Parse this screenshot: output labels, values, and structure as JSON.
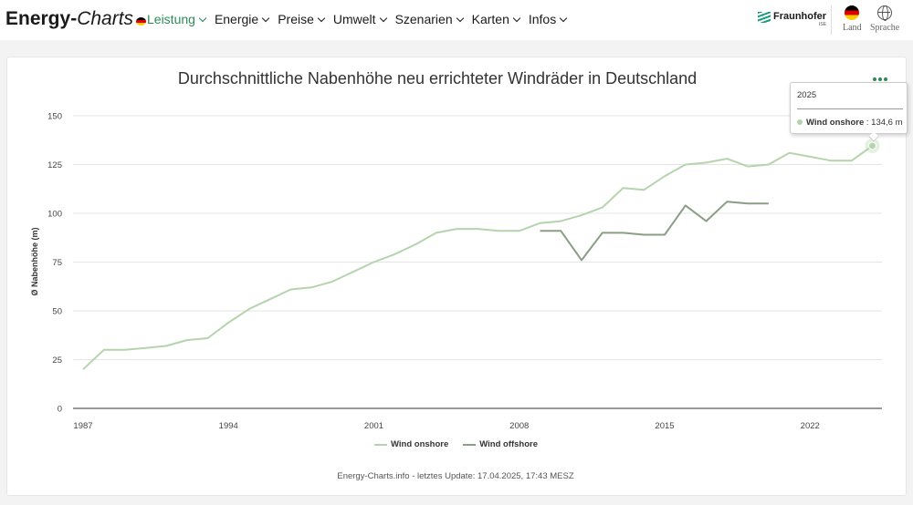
{
  "header": {
    "logo_main": "Energy-",
    "logo_italic": "Charts",
    "nav": [
      {
        "label": "Leistung",
        "active": true
      },
      {
        "label": "Energie"
      },
      {
        "label": "Preise"
      },
      {
        "label": "Umwelt"
      },
      {
        "label": "Szenarien"
      },
      {
        "label": "Karten"
      },
      {
        "label": "Infos"
      }
    ],
    "partner": "Fraunhofer",
    "partner_sub": "ISE",
    "country_label": "Land",
    "language_label": "Sprache"
  },
  "footer": {
    "text": "Energy-Charts.info - letztes Update: 17.04.2025, 17:43 MESZ"
  },
  "tooltip": {
    "year": "2025",
    "series": "Wind onshore",
    "value": ": 134,6 m"
  },
  "colors": {
    "accent": "#2e8b57",
    "onshore": "#b5d4ae",
    "offshore": "#8a9e85"
  },
  "chart_data": {
    "type": "line",
    "title": "Durchschnittliche Nabenhöhe neu errichteter Windräder in Deutschland",
    "xlabel": "",
    "ylabel": "Ø Nabenhöhe (m)",
    "ylim": [
      0,
      150
    ],
    "xlim": [
      1987,
      2025
    ],
    "yticks": [
      0,
      25,
      50,
      75,
      100,
      125,
      150
    ],
    "xticks": [
      1987,
      1994,
      2001,
      2008,
      2015,
      2022
    ],
    "grid": true,
    "legend_position": "bottom",
    "series": [
      {
        "name": "Wind onshore",
        "x": [
          1987,
          1988,
          1989,
          1990,
          1991,
          1992,
          1993,
          1994,
          1995,
          1996,
          1997,
          1998,
          1999,
          2000,
          2001,
          2002,
          2003,
          2004,
          2005,
          2006,
          2007,
          2008,
          2009,
          2010,
          2011,
          2012,
          2013,
          2014,
          2015,
          2016,
          2017,
          2018,
          2019,
          2020,
          2021,
          2022,
          2023,
          2024,
          2025
        ],
        "values": [
          20,
          30,
          30,
          31,
          32,
          35,
          36,
          44,
          51,
          56,
          61,
          62,
          65,
          70,
          75,
          79,
          84,
          90,
          92,
          92,
          91,
          91,
          95,
          96,
          99,
          103,
          113,
          112,
          119,
          125,
          126,
          128,
          124,
          125,
          131,
          129,
          127,
          127,
          134.6
        ]
      },
      {
        "name": "Wind offshore",
        "x": [
          2009,
          2010,
          2011,
          2012,
          2013,
          2014,
          2015,
          2016,
          2017,
          2018,
          2019,
          2020
        ],
        "values": [
          91,
          91,
          76,
          90,
          90,
          89,
          89,
          104,
          96,
          106,
          105,
          105
        ]
      }
    ]
  }
}
